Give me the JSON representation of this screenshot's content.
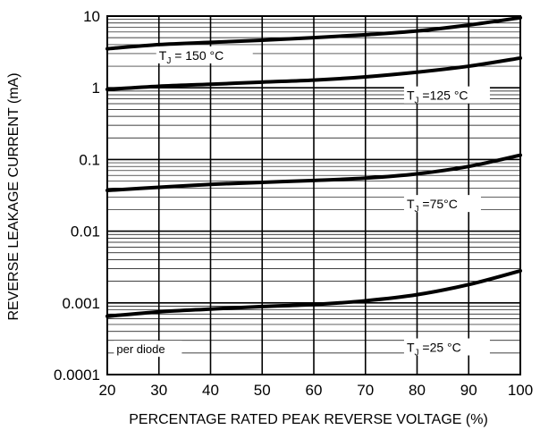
{
  "chart_data": {
    "type": "line",
    "xlabel": "PERCENTAGE RATED PEAK REVERSE VOLTAGE (%)",
    "ylabel": "REVERSE LEAKAGE CURRENT (mA)",
    "x_scale": "linear",
    "y_scale": "log",
    "xlim": [
      20,
      100
    ],
    "ylim": [
      0.0001,
      10
    ],
    "x_ticks": [
      20,
      30,
      40,
      50,
      60,
      70,
      80,
      90,
      100
    ],
    "y_ticks": [
      {
        "value": 0.0001,
        "label": "0.0001"
      },
      {
        "value": 0.001,
        "label": "0.001"
      },
      {
        "value": 0.01,
        "label": "0.01"
      },
      {
        "value": 0.1,
        "label": "0.1"
      },
      {
        "value": 1,
        "label": "1"
      },
      {
        "value": 10,
        "label": "10"
      }
    ],
    "grid": true,
    "series": [
      {
        "label": {
          "main": "T",
          "sub": "J",
          "rest": " = 150 °C"
        },
        "x": [
          20,
          30,
          40,
          50,
          60,
          70,
          80,
          90,
          100
        ],
        "y": [
          3.5,
          4.0,
          4.3,
          4.6,
          5.0,
          5.5,
          6.2,
          7.5,
          9.5
        ]
      },
      {
        "label": {
          "main": "T",
          "sub": "J",
          "rest": " =125 °C"
        },
        "x": [
          20,
          30,
          40,
          50,
          60,
          70,
          80,
          90,
          100
        ],
        "y": [
          0.95,
          1.05,
          1.12,
          1.2,
          1.28,
          1.42,
          1.65,
          2.0,
          2.6
        ]
      },
      {
        "label": {
          "main": "T",
          "sub": "J",
          "rest": " =75°C"
        },
        "x": [
          20,
          30,
          40,
          50,
          60,
          70,
          80,
          90,
          100
        ],
        "y": [
          0.037,
          0.041,
          0.045,
          0.048,
          0.051,
          0.055,
          0.063,
          0.08,
          0.115
        ]
      },
      {
        "label": {
          "main": "T",
          "sub": "J",
          "rest": " =25 °C"
        },
        "x": [
          20,
          30,
          40,
          50,
          60,
          70,
          80,
          90,
          100
        ],
        "y": [
          0.00065,
          0.00075,
          0.00082,
          0.00089,
          0.00095,
          0.00107,
          0.0013,
          0.0018,
          0.0028
        ]
      }
    ],
    "annotations": [
      {
        "text": "per diode"
      }
    ]
  }
}
